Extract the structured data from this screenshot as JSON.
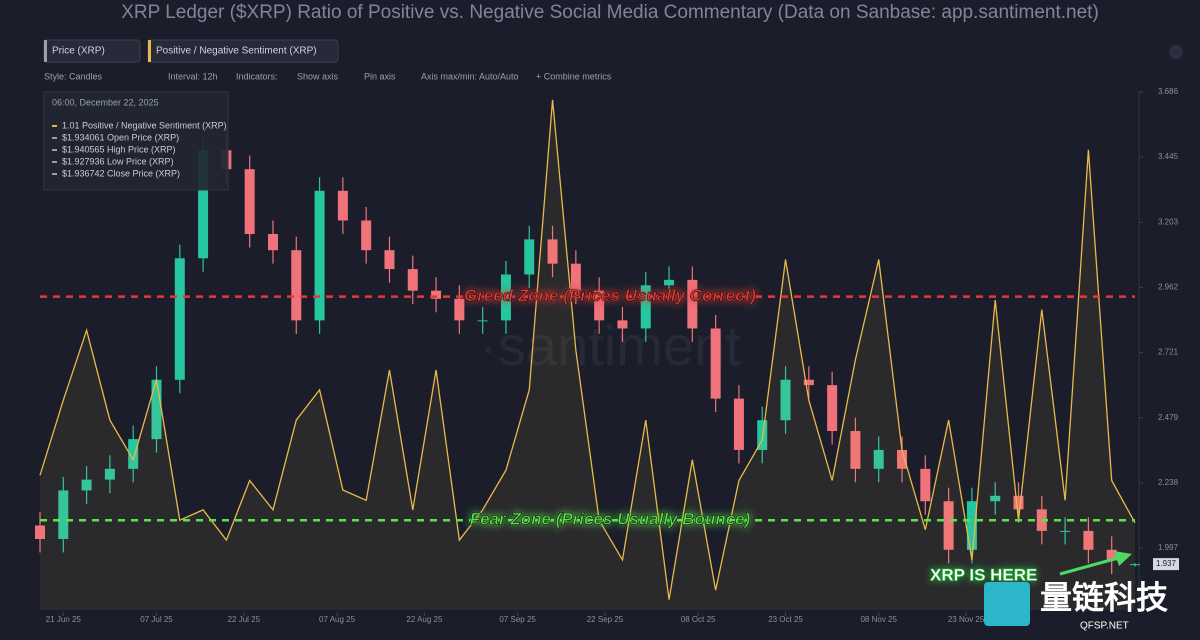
{
  "chart_data": {
    "type": "candlestick",
    "title": "XRP Ledger ($XRP) Ratio of Positive vs. Negative Social Media Commentary (Data on Sanbase: app.santiment.net)",
    "x": [
      "2025-06-17",
      "2025-06-21",
      "2025-06-25",
      "2025-06-29",
      "2025-07-03",
      "2025-07-07",
      "2025-07-11",
      "2025-07-15",
      "2025-07-19",
      "2025-07-23",
      "2025-07-27",
      "2025-07-31",
      "2025-08-04",
      "2025-08-08",
      "2025-08-12",
      "2025-08-16",
      "2025-08-20",
      "2025-08-24",
      "2025-08-28",
      "2025-09-01",
      "2025-09-05",
      "2025-09-09",
      "2025-09-13",
      "2025-09-17",
      "2025-09-21",
      "2025-09-25",
      "2025-09-29",
      "2025-10-03",
      "2025-10-07",
      "2025-10-11",
      "2025-10-15",
      "2025-10-19",
      "2025-10-23",
      "2025-10-27",
      "2025-10-31",
      "2025-11-04",
      "2025-11-08",
      "2025-11-12",
      "2025-11-16",
      "2025-11-20",
      "2025-11-24",
      "2025-11-28",
      "2025-12-02",
      "2025-12-06",
      "2025-12-10",
      "2025-12-14",
      "2025-12-18",
      "2025-12-22"
    ],
    "series": [
      {
        "name": "Price (XRP)",
        "up_color": "#26c6a0",
        "down_color": "#f0727a",
        "open": [
          2.08,
          2.03,
          2.21,
          2.25,
          2.29,
          2.4,
          2.62,
          3.07,
          3.47,
          3.4,
          3.16,
          3.1,
          2.84,
          3.32,
          3.21,
          3.1,
          3.03,
          2.95,
          2.92,
          2.84,
          2.84,
          3.01,
          3.14,
          3.05,
          2.95,
          2.84,
          2.81,
          2.97,
          2.99,
          2.81,
          2.55,
          2.36,
          2.47,
          2.62,
          2.6,
          2.43,
          2.29,
          2.36,
          2.29,
          2.17,
          1.99,
          2.17,
          2.19,
          2.14,
          2.06,
          2.06,
          1.99,
          1.934061
        ],
        "high": [
          2.13,
          2.26,
          2.3,
          2.34,
          2.45,
          2.67,
          3.12,
          3.52,
          3.55,
          3.45,
          3.21,
          3.15,
          3.37,
          3.37,
          3.26,
          3.15,
          3.08,
          3.0,
          2.97,
          2.89,
          3.06,
          3.19,
          3.19,
          3.1,
          3.0,
          2.89,
          3.02,
          3.04,
          3.04,
          2.86,
          2.6,
          2.52,
          2.67,
          2.67,
          2.65,
          2.48,
          2.41,
          2.41,
          2.34,
          2.22,
          2.22,
          2.24,
          2.24,
          2.19,
          2.11,
          2.11,
          2.04,
          1.940565
        ],
        "low": [
          1.98,
          1.98,
          2.16,
          2.2,
          2.24,
          2.35,
          2.57,
          3.02,
          3.35,
          3.11,
          3.05,
          2.79,
          2.79,
          3.16,
          3.05,
          2.98,
          2.9,
          2.87,
          2.79,
          2.79,
          2.79,
          2.96,
          3.0,
          2.9,
          2.79,
          2.76,
          2.76,
          2.92,
          2.76,
          2.5,
          2.31,
          2.31,
          2.42,
          2.55,
          2.38,
          2.24,
          2.24,
          2.24,
          2.12,
          1.94,
          1.94,
          2.12,
          2.09,
          2.01,
          2.01,
          1.94,
          1.9,
          1.927936
        ],
        "close": [
          2.03,
          2.21,
          2.25,
          2.29,
          2.4,
          2.62,
          3.07,
          3.47,
          3.4,
          3.16,
          3.1,
          2.84,
          3.32,
          3.21,
          3.1,
          3.03,
          2.95,
          2.92,
          2.84,
          2.84,
          3.01,
          3.14,
          3.05,
          2.95,
          2.84,
          2.81,
          2.97,
          2.99,
          2.81,
          2.55,
          2.36,
          2.47,
          2.62,
          2.6,
          2.43,
          2.29,
          2.36,
          2.29,
          2.17,
          1.99,
          2.17,
          2.19,
          2.14,
          2.06,
          2.06,
          1.99,
          1.95,
          1.936742
        ]
      },
      {
        "name": "Positive / Negative Sentiment (XRP)",
        "type": "line",
        "axis": "y2",
        "color": "#e9b949",
        "values": [
          1.56,
          2.43,
          3.24,
          2.2,
          1.74,
          2.67,
          1.04,
          1.16,
          0.81,
          1.5,
          1.16,
          2.2,
          2.55,
          1.39,
          1.27,
          2.78,
          1.16,
          2.78,
          0.81,
          1.16,
          1.62,
          2.55,
          5.91,
          3.01,
          1.04,
          0.58,
          2.2,
          0.12,
          1.74,
          0.23,
          1.5,
          1.97,
          4.06,
          2.43,
          1.5,
          2.9,
          4.06,
          1.85,
          0.93,
          2.2,
          0.58,
          3.59,
          1.04,
          3.48,
          1.27,
          5.33,
          1.5,
          1.01
        ]
      }
    ],
    "xlim": [
      "2025-06-17",
      "2025-12-22"
    ],
    "xticks": [
      {
        "value": "2025-06-21",
        "label": "21 Jun 25"
      },
      {
        "value": "2025-07-07",
        "label": "07 Jul 25"
      },
      {
        "value": "2025-07-22",
        "label": "22 Jul 25"
      },
      {
        "value": "2025-08-07",
        "label": "07 Aug 25"
      },
      {
        "value": "2025-08-22",
        "label": "22 Aug 25"
      },
      {
        "value": "2025-09-07",
        "label": "07 Sep 25"
      },
      {
        "value": "2025-09-22",
        "label": "22 Sep 25"
      },
      {
        "value": "2025-10-08",
        "label": "08 Oct 25"
      },
      {
        "value": "2025-10-23",
        "label": "23 Oct 25"
      },
      {
        "value": "2025-11-08",
        "label": "08 Nov 25"
      },
      {
        "value": "2025-11-23",
        "label": "23 Nov 25"
      }
    ],
    "ylim": [
      1.767,
      3.686
    ],
    "yticks": [
      1.997,
      2.238,
      2.479,
      2.721,
      2.962,
      3.203,
      3.445,
      3.686
    ],
    "y2lim": [
      0,
      6
    ],
    "last_price": 1.937,
    "reference_lines": [
      {
        "label": "Greed Zone (Prices Usually Correct)",
        "value": 3.63,
        "color": "#e53935"
      },
      {
        "label": "Fear Zone (Prices Usually Bounce)",
        "value": 1.04,
        "color": "#5be34a"
      }
    ],
    "annotation": "XRP IS HERE"
  },
  "toolbar": {
    "chips": [
      "Price (XRP)",
      "Positive / Negative Sentiment (XRP)"
    ],
    "controls": [
      "Style: Candles",
      "Interval: 12h",
      "Indicators:",
      "Show axis",
      "Pin axis",
      "Axis max/min: Auto/Auto",
      "+ Combine metrics"
    ]
  },
  "tooltip": {
    "date": "06:00, December 22, 2025",
    "lines": [
      "1.01 Positive / Negative Sentiment (XRP)",
      "$1.934061 Open Price (XRP)",
      "$1.940565 High Price (XRP)",
      "$1.927936 Low Price (XRP)",
      "$1.936742 Close Price (XRP)"
    ]
  },
  "watermark": "·santiment",
  "logo": {
    "name": "量链科技",
    "site": "QFSP.NET"
  }
}
